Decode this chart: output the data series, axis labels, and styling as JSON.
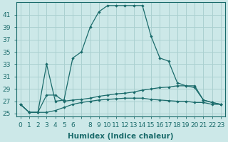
{
  "xlabel": "Humidex (Indice chaleur)",
  "x_positions": [
    0,
    1,
    2,
    3,
    4,
    5,
    6,
    7,
    8,
    9,
    10,
    11,
    12,
    13,
    14,
    15,
    16,
    17,
    18,
    19,
    20,
    21,
    22,
    23
  ],
  "x_labels": [
    "0",
    "1",
    "2",
    "3",
    "4",
    "5",
    "6",
    "",
    "8",
    "9",
    "10",
    "11",
    "12",
    "13",
    "14",
    "15",
    "16",
    "17",
    "18",
    "19",
    "20",
    "21",
    "22",
    "23"
  ],
  "line1_y": [
    26.5,
    25.2,
    25.2,
    25.2,
    25.5,
    26.0,
    26.5,
    26.8,
    27.0,
    27.2,
    27.3,
    27.4,
    27.5,
    27.5,
    27.5,
    27.3,
    27.2,
    27.1,
    27.0,
    27.0,
    26.8,
    26.8,
    26.5,
    26.5
  ],
  "line2_y": [
    26.5,
    25.2,
    25.2,
    28.0,
    28.0,
    27.0,
    27.2,
    27.3,
    27.5,
    27.8,
    28.0,
    28.2,
    28.3,
    28.5,
    28.8,
    29.0,
    29.2,
    29.3,
    29.5,
    29.5,
    29.2,
    27.2,
    26.8,
    26.5
  ],
  "line3_y": [
    26.5,
    25.2,
    25.2,
    33.0,
    27.0,
    27.2,
    34.0,
    35.0,
    39.0,
    41.5,
    42.5,
    42.5,
    42.5,
    42.5,
    42.5,
    37.5,
    34.0,
    33.5,
    30.0,
    29.5,
    29.5,
    27.2,
    26.8,
    26.5
  ],
  "line_color": "#1a6b6b",
  "bg_color": "#cce8e8",
  "grid_color": "#aad0d0",
  "ylim": [
    24.5,
    43.0
  ],
  "yticks": [
    25,
    27,
    29,
    31,
    33,
    35,
    37,
    39,
    41
  ],
  "tick_fontsize": 6.5,
  "label_fontsize": 7.5
}
